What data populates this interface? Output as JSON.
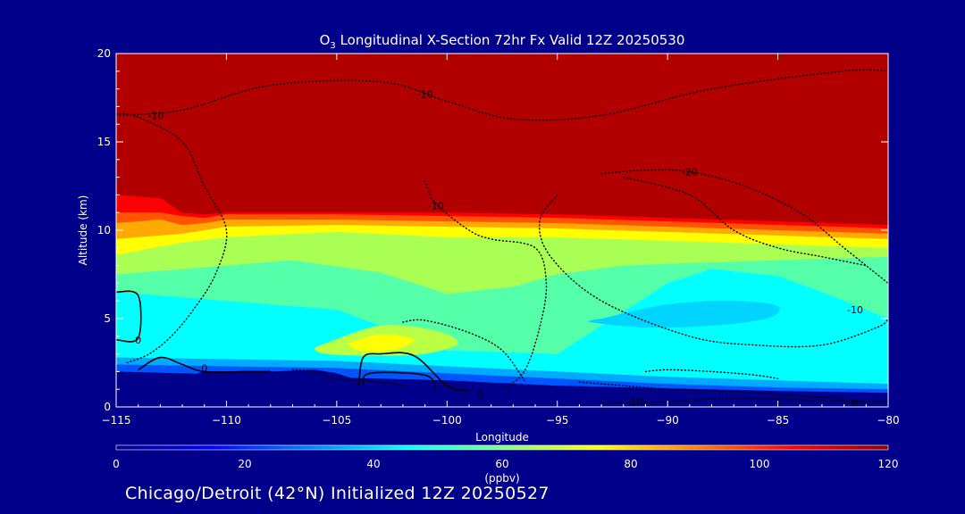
{
  "chart_data": {
    "type": "heatmap",
    "title": {
      "species_base": "O",
      "species_sub": "3",
      "text": " Longitudinal X-Section 72hr  Fx Valid 12Z 20250530"
    },
    "xlabel": "Longitude",
    "ylabel": "Altitude (km)",
    "xlim": [
      -115,
      -80
    ],
    "ylim": [
      0,
      20
    ],
    "x_ticks": [
      -115,
      -110,
      -105,
      -100,
      -95,
      -90,
      -85,
      -80
    ],
    "x_tick_labels": [
      "−115",
      "−110",
      "−105",
      "−100",
      "−95",
      "−90",
      "−85",
      "−80"
    ],
    "y_ticks": [
      0,
      5,
      10,
      15,
      20
    ],
    "y_tick_labels": [
      "0",
      "5",
      "10",
      "15",
      "20"
    ],
    "colorbar": {
      "label": "(ppbv)",
      "range": [
        0,
        120
      ],
      "ticks": [
        0,
        20,
        40,
        60,
        80,
        100,
        120
      ],
      "tick_labels": [
        "0",
        "20",
        "40",
        "60",
        "80",
        "100",
        "120"
      ],
      "colors": [
        "#00008b",
        "#0000ff",
        "#0080ff",
        "#00ffff",
        "#80ff80",
        "#ffff00",
        "#ff8000",
        "#ff0000",
        "#8b0000"
      ]
    },
    "surface_terrain_km": {
      "x": [
        -115,
        -113,
        -112,
        -111,
        -108,
        -106,
        -105,
        -104,
        -102,
        -100,
        -98,
        -95,
        -92,
        -88,
        -84,
        -80
      ],
      "y": [
        1.7,
        1.6,
        1.6,
        2.0,
        2.0,
        2.1,
        1.9,
        1.5,
        1.2,
        0.9,
        0.7,
        0.5,
        0.4,
        0.3,
        0.3,
        0.3
      ]
    },
    "ozone_bands": [
      {
        "top": 1.4,
        "x": [
          -115,
          -100,
          -95,
          -85,
          -80
        ],
        "y": [
          2.0,
          1.5,
          1.2,
          0.9,
          0.8
        ]
      },
      {
        "top": 30,
        "x": [
          -115,
          -105,
          -100,
          -95,
          -90,
          -85,
          -80
        ],
        "y": [
          2.4,
          2.2,
          1.9,
          1.6,
          1.3,
          1.1,
          1.0
        ]
      },
      {
        "top": 40,
        "x": [
          -115,
          -105,
          -100,
          -95,
          -90,
          -85,
          -80
        ],
        "y": [
          2.8,
          2.6,
          2.3,
          2.0,
          1.7,
          1.5,
          1.3
        ]
      },
      {
        "top": 50,
        "x": [
          -115,
          -105,
          -100,
          -95,
          -90,
          -88,
          -85,
          -83,
          -80
        ],
        "y": [
          6.5,
          5.5,
          3.2,
          3.0,
          7.0,
          7.8,
          7.4,
          6.5,
          5.0
        ]
      },
      {
        "top": 60,
        "x": [
          -115,
          -110,
          -107,
          -103,
          -100,
          -97,
          -95,
          -92,
          -90,
          -85,
          -80
        ],
        "y": [
          7.5,
          8.0,
          8.3,
          7.6,
          6.4,
          6.8,
          7.5,
          8.0,
          8.1,
          8.3,
          8.5
        ]
      },
      {
        "top": 70,
        "x": [
          -115,
          -112,
          -110,
          -105,
          -100,
          -95,
          -90,
          -85,
          -80
        ],
        "y": [
          8.6,
          9.3,
          9.6,
          9.9,
          9.6,
          9.6,
          9.4,
          9.2,
          9.0
        ]
      },
      {
        "top": 80,
        "x": [
          -115,
          -112,
          -111,
          -110,
          -105,
          -100,
          -95,
          -90,
          -85,
          -80
        ],
        "y": [
          9.5,
          9.8,
          10.0,
          10.2,
          10.3,
          10.2,
          10.1,
          9.9,
          9.7,
          9.5
        ]
      },
      {
        "top": 90,
        "x": [
          -115,
          -113,
          -112,
          -111,
          -110,
          -105,
          -100,
          -95,
          -90,
          -85,
          -80
        ],
        "y": [
          10.4,
          10.6,
          10.3,
          10.4,
          10.6,
          10.6,
          10.5,
          10.4,
          10.2,
          10.0,
          9.8
        ]
      },
      {
        "top": 100,
        "x": [
          -115,
          -113,
          -112,
          -111,
          -110,
          -105,
          -100,
          -95,
          -90,
          -85,
          -80
        ],
        "y": [
          11.0,
          11.0,
          10.8,
          10.7,
          10.9,
          10.9,
          10.8,
          10.7,
          10.5,
          10.3,
          10.1
        ]
      },
      {
        "top": 110,
        "x": [
          -115,
          -113,
          -112,
          -111,
          -110,
          -105,
          -100,
          -95,
          -90,
          -85,
          -80
        ],
        "y": [
          12.0,
          11.8,
          11.0,
          10.9,
          11.0,
          11.0,
          11.0,
          10.9,
          10.7,
          10.5,
          10.3
        ]
      },
      {
        "top": 120,
        "x": [
          -115,
          -80
        ],
        "y": [
          20,
          20
        ]
      }
    ],
    "ozone_pockets": [
      {
        "value": 55,
        "x": [
          -107.5,
          -106,
          -105,
          -106,
          -107.5,
          -108.5
        ],
        "y": [
          7.2,
          7.6,
          7.1,
          6.5,
          6.5,
          6.9
        ]
      },
      {
        "value": 40,
        "x": [
          -93,
          -90,
          -87,
          -85,
          -85.5,
          -88,
          -91,
          -93.5
        ],
        "y": [
          5.0,
          5.8,
          6.0,
          5.7,
          5.0,
          4.6,
          4.5,
          4.8
        ]
      },
      {
        "value": 67,
        "x": [
          -105.5,
          -103,
          -100.5,
          -99.5,
          -101,
          -103.5,
          -105.5,
          -106
        ],
        "y": [
          3.6,
          4.6,
          4.3,
          3.6,
          3.0,
          2.9,
          3.0,
          3.3
        ]
      },
      {
        "value": 75,
        "x": [
          -104.5,
          -103,
          -101.5,
          -102.5,
          -104
        ],
        "y": [
          3.6,
          4.1,
          3.8,
          3.2,
          3.2
        ]
      }
    ],
    "contours": [
      {
        "label": "0",
        "style": "solid",
        "x": [
          -115,
          -114,
          -114,
          -115
        ],
        "y": [
          6.5,
          6.3,
          3.9,
          3.8
        ],
        "label_x": -114.0,
        "label_y": 3.8
      },
      {
        "label": "0",
        "style": "solid",
        "x": [
          -114,
          -113,
          -112,
          -111,
          -109,
          -108
        ],
        "y": [
          2.1,
          2.8,
          2.4,
          2.0,
          2.0,
          2.0
        ],
        "label_x": -111.0,
        "label_y": 2.2
      },
      {
        "label": "0",
        "style": "solid",
        "x": [
          -104,
          -103.8,
          -103,
          -101.5,
          -100,
          -99
        ],
        "y": [
          1.2,
          2.8,
          3.0,
          2.9,
          1.2,
          0.9
        ],
        "label_x": -98.5,
        "label_y": 0.7
      },
      {
        "label": "",
        "style": "solid",
        "x": [
          -103.8,
          -103.5,
          -101,
          -100.5
        ],
        "y": [
          1.2,
          1.9,
          1.8,
          1.0
        ],
        "label_x": -102,
        "label_y": 1.0
      },
      {
        "label": "-10",
        "style": "dotted",
        "x": [
          -115,
          -112,
          -108,
          -103,
          -100,
          -97,
          -93,
          -88,
          -82,
          -80
        ],
        "y": [
          16.5,
          16.8,
          18.2,
          18.4,
          17.3,
          16.3,
          16.5,
          18.0,
          19.0,
          19.0
        ],
        "label_x": -101,
        "label_y": 17.7
      },
      {
        "label": "-10",
        "style": "dotted",
        "x": [
          -115,
          -114,
          -112,
          -111,
          -110,
          -110.5,
          -111.5,
          -112.5,
          -113.5,
          -114.5
        ],
        "y": [
          16.6,
          16.4,
          15.0,
          12.5,
          10.0,
          7.5,
          5.5,
          4.0,
          3.0,
          2.5
        ],
        "label_x": -113.2,
        "label_y": 16.5
      },
      {
        "label": "-10",
        "style": "dotted",
        "x": [
          -101,
          -100.5,
          -99,
          -98,
          -96,
          -95.5,
          -95.8,
          -96.5,
          -97.5
        ],
        "y": [
          12.8,
          11.5,
          10.0,
          9.5,
          9.0,
          7.0,
          4.5,
          2.0,
          1.0
        ],
        "label_x": -100.5,
        "label_y": 11.4
      },
      {
        "label": "-10",
        "style": "dotted",
        "x": [
          -95,
          -95.8,
          -95.3,
          -93,
          -89,
          -86,
          -83,
          -80.5,
          -80
        ],
        "y": [
          12.0,
          10.5,
          8.5,
          6.0,
          4.0,
          3.5,
          3.5,
          4.5,
          5.0
        ],
        "label_x": -81.5,
        "label_y": 5.5
      },
      {
        "label": "-10",
        "style": "dotted",
        "x": [
          -93,
          -90,
          -87,
          -84,
          -80
        ],
        "y": [
          0.2,
          0.3,
          0.5,
          0.4,
          0.3
        ],
        "label_x": -91.5,
        "label_y": 0.3
      },
      {
        "label": "-20",
        "style": "dotted",
        "x": [
          -93,
          -91,
          -89,
          -86.5,
          -84,
          -82,
          -80.5,
          -80
        ],
        "y": [
          13.2,
          13.4,
          13.3,
          12.5,
          11.0,
          9.0,
          7.5,
          7.0
        ],
        "label_x": -89,
        "label_y": 13.3
      },
      {
        "label": "",
        "style": "dotted",
        "x": [
          -92,
          -89,
          -87,
          -85,
          -83,
          -81
        ],
        "y": [
          13.0,
          12.0,
          10.0,
          9.0,
          8.5,
          8.0
        ],
        "label_x": -85,
        "label_y": 9
      },
      {
        "label": "",
        "style": "dotted",
        "x": [
          -102,
          -101,
          -99,
          -97.5,
          -96.5
        ],
        "y": [
          4.8,
          4.9,
          4.2,
          3.2,
          1.5
        ],
        "label_x": -100,
        "label_y": 4.6
      },
      {
        "label": "",
        "style": "dotted",
        "x": [
          -107,
          -106,
          -105,
          -103,
          -102
        ],
        "y": [
          2.1,
          2.0,
          1.6,
          1.4,
          1.2
        ],
        "label_x": -105,
        "label_y": 1.6
      },
      {
        "label": "",
        "style": "dotted",
        "x": [
          -94,
          -92,
          -90,
          -88,
          -86,
          -84,
          -82
        ],
        "y": [
          1.4,
          1.2,
          1.0,
          0.9,
          0.8,
          0.6,
          0.5
        ],
        "label_x": -88,
        "label_y": 0.9
      },
      {
        "label": "",
        "style": "dotted",
        "x": [
          -91,
          -90,
          -88,
          -86,
          -85
        ],
        "y": [
          2.0,
          2.1,
          2.0,
          1.8,
          1.6
        ],
        "label_x": -88,
        "label_y": 2.0
      },
      {
        "label": "0",
        "style": "dotted",
        "x": [
          -82,
          -81.5,
          -80.5
        ],
        "y": [
          0.2,
          0.3,
          0.3
        ],
        "label_x": -81.5,
        "label_y": 0.2
      }
    ]
  },
  "footer": {
    "text": "Chicago/Detroit (42°N) Initialized 12Z 20250527"
  }
}
